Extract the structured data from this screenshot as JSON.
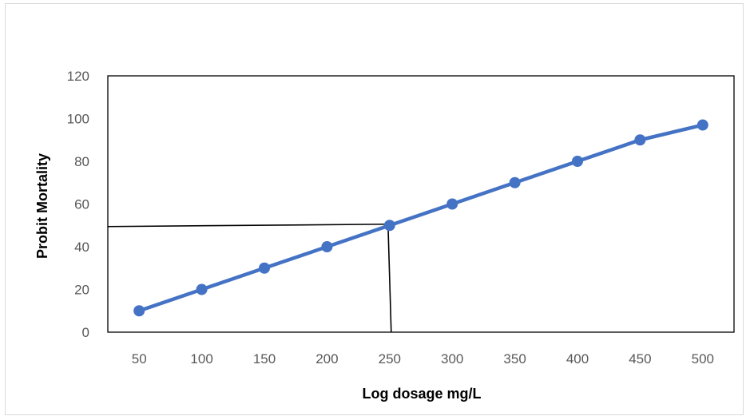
{
  "chart_data": {
    "type": "line",
    "title": "",
    "xlabel": "Log dosage mg/L",
    "ylabel": "Probit Mortality",
    "categories": [
      "50",
      "100",
      "150",
      "200",
      "250",
      "300",
      "350",
      "400",
      "450",
      "500"
    ],
    "series": [
      {
        "values": [
          10,
          20,
          30,
          40,
          50,
          60,
          70,
          80,
          90,
          97
        ],
        "color": "#4472C4"
      }
    ],
    "ylim": [
      0,
      120
    ],
    "yticks": [
      0,
      20,
      40,
      60,
      80,
      100,
      120
    ],
    "grid": false,
    "legend": "none",
    "annotation": {
      "category": "250",
      "value": 50,
      "color": "#000000"
    }
  }
}
